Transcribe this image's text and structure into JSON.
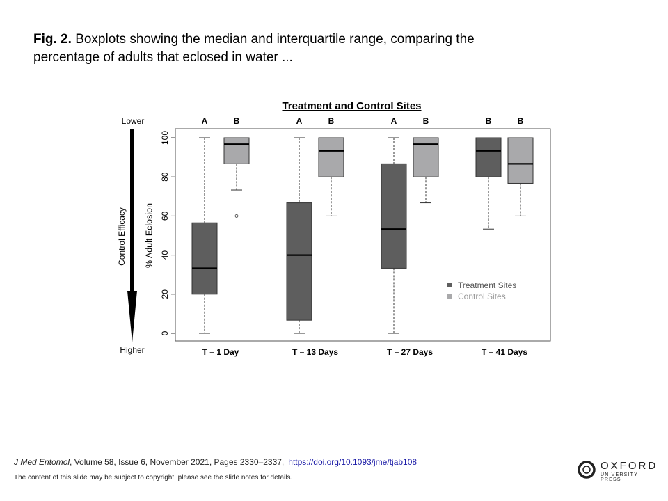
{
  "caption": {
    "fig_label": "Fig. 2.",
    "text": "Boxplots showing the median and interquartile range, comparing the percentage of adults that eclosed in water ..."
  },
  "citation": {
    "journal": "J Med Entomol",
    "details": ", Volume 58, Issue 6, November  2021, Pages 2330–2337,",
    "doi": "https://doi.org/10.1093/jme/tjab108"
  },
  "notice": "The content of this slide may be subject to copyright: please see the slide notes for details.",
  "logo": {
    "word": "OXFORD",
    "sub": "UNIVERSITY PRESS"
  },
  "chart_data": {
    "type": "boxplot",
    "title": "Treatment and Control Sites",
    "ylabel": "% Adult Eclosion",
    "ylim": [
      0,
      100
    ],
    "yticks": [
      0,
      20,
      40,
      60,
      80,
      100
    ],
    "side_axis": {
      "label": "Control Efficacy",
      "top": "Lower",
      "bottom": "Higher"
    },
    "categories": [
      "T – 1 Day",
      "T – 13 Days",
      "T – 27 Days",
      "T – 41 Days"
    ],
    "series": [
      {
        "name": "Treatment Sites",
        "color": "#5e5e5e",
        "letters": [
          "A",
          "A",
          "A",
          "B"
        ],
        "boxes": [
          {
            "min": 0,
            "q1": 20,
            "median": 33.3,
            "q3": 56.5,
            "max": 100,
            "outliers": []
          },
          {
            "min": 0,
            "q1": 6.7,
            "median": 40,
            "q3": 66.7,
            "max": 100,
            "outliers": []
          },
          {
            "min": 0,
            "q1": 33.3,
            "median": 53.3,
            "q3": 86.7,
            "max": 100,
            "outliers": []
          },
          {
            "min": 53.3,
            "q1": 80,
            "median": 93.3,
            "q3": 100,
            "max": 100,
            "outliers": []
          }
        ]
      },
      {
        "name": "Control Sites",
        "color": "#a9a9ab",
        "letters": [
          "B",
          "B",
          "B",
          "B"
        ],
        "boxes": [
          {
            "min": 73.3,
            "q1": 86.7,
            "median": 96.7,
            "q3": 100,
            "max": 100,
            "outliers": [
              60
            ]
          },
          {
            "min": 60,
            "q1": 80,
            "median": 93.3,
            "q3": 100,
            "max": 100,
            "outliers": []
          },
          {
            "min": 66.7,
            "q1": 80,
            "median": 96.7,
            "q3": 100,
            "max": 100,
            "outliers": []
          },
          {
            "min": 60,
            "q1": 76.7,
            "median": 86.7,
            "q3": 100,
            "max": 100,
            "outliers": []
          }
        ]
      }
    ]
  }
}
